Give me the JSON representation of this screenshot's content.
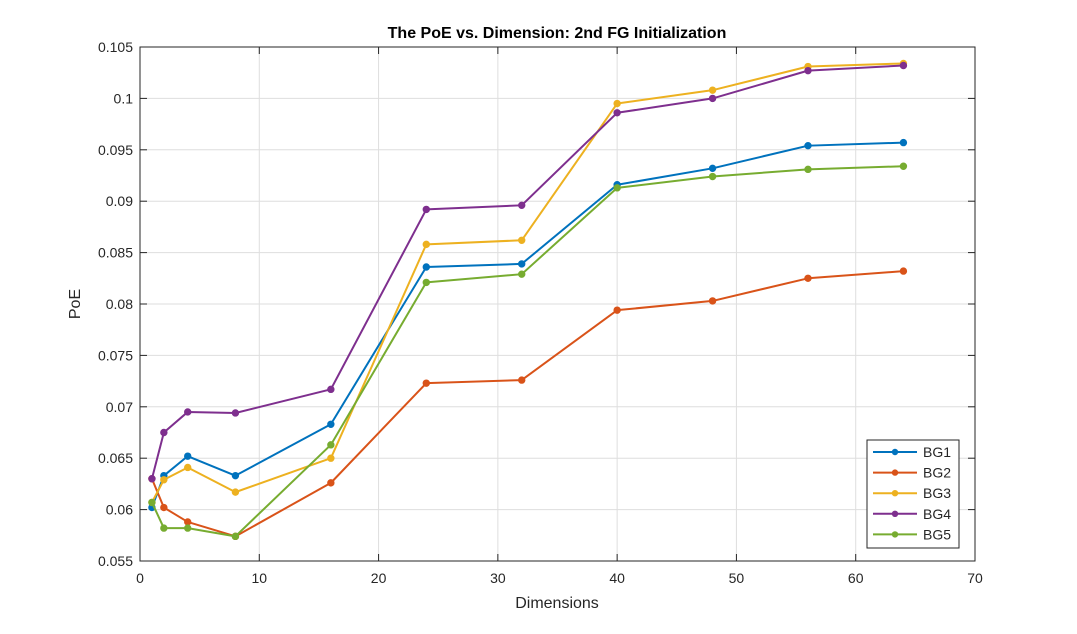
{
  "chart_data": {
    "type": "line",
    "title": "The PoE vs. Dimension: 2nd FG Initialization",
    "xlabel": "Dimensions",
    "ylabel": "PoE",
    "xlim": [
      0,
      70
    ],
    "ylim": [
      0.055,
      0.105
    ],
    "xticks": [
      0,
      10,
      20,
      30,
      40,
      50,
      60,
      70
    ],
    "xtick_labels": [
      "0",
      "10",
      "20",
      "30",
      "40",
      "50",
      "60",
      "70"
    ],
    "yticks": [
      0.055,
      0.06,
      0.065,
      0.07,
      0.075,
      0.08,
      0.085,
      0.09,
      0.095,
      0.1,
      0.105
    ],
    "ytick_labels": [
      "0.055",
      "0.06",
      "0.065",
      "0.07",
      "0.075",
      "0.08",
      "0.085",
      "0.09",
      "0.095",
      "0.1",
      "0.105"
    ],
    "grid": true,
    "legend_position": "bottom-right",
    "x": [
      1,
      2,
      4,
      8,
      16,
      24,
      32,
      40,
      48,
      56,
      64
    ],
    "series": [
      {
        "name": "BG1",
        "color": "#0072BD",
        "values": [
          0.0602,
          0.0633,
          0.0652,
          0.0633,
          0.0683,
          0.0836,
          0.0839,
          0.0916,
          0.0932,
          0.0954,
          0.0957
        ]
      },
      {
        "name": "BG2",
        "color": "#D95319",
        "values": [
          0.063,
          0.0602,
          0.0588,
          0.0574,
          0.0626,
          0.0723,
          0.0726,
          0.0794,
          0.0803,
          0.0825,
          0.0832
        ]
      },
      {
        "name": "BG3",
        "color": "#EDB120",
        "values": [
          0.0607,
          0.0629,
          0.0641,
          0.0617,
          0.065,
          0.0858,
          0.0862,
          0.0995,
          0.1008,
          0.1031,
          0.1034
        ]
      },
      {
        "name": "BG4",
        "color": "#7E2F8E",
        "values": [
          0.063,
          0.0675,
          0.0695,
          0.0694,
          0.0717,
          0.0892,
          0.0896,
          0.0986,
          0.1,
          0.1027,
          0.1032
        ]
      },
      {
        "name": "BG5",
        "color": "#77AC30",
        "values": [
          0.0607,
          0.0582,
          0.0582,
          0.0574,
          0.0663,
          0.0821,
          0.0829,
          0.0913,
          0.0924,
          0.0931,
          0.0934
        ]
      }
    ]
  }
}
